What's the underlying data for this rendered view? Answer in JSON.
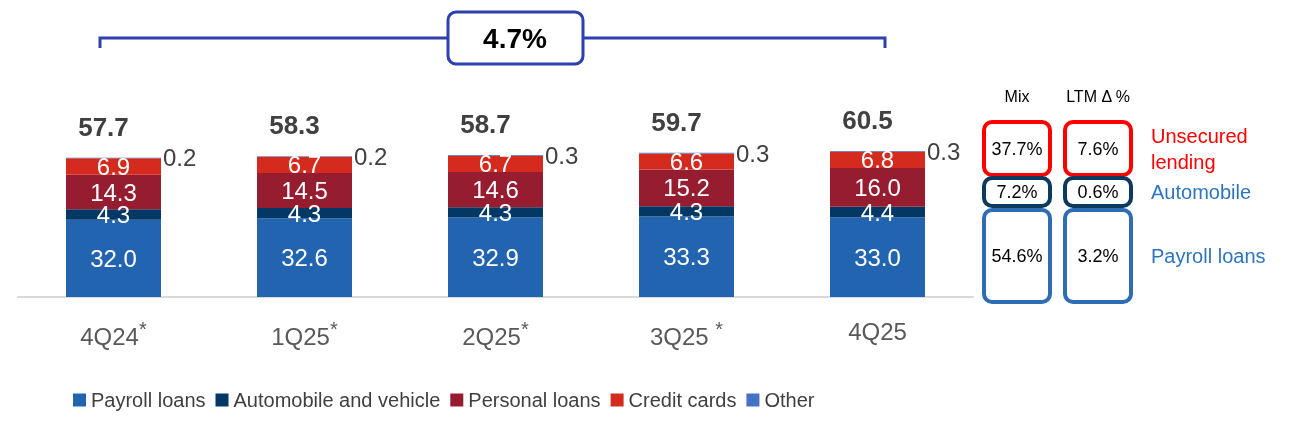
{
  "chart_data": {
    "type": "bar",
    "stacked": true,
    "legend": "bottom",
    "categories": [
      "4Q24$^{*}$",
      "1Q25$^{*}$",
      "2Q25$^{*}$",
      "3Q25 $^{*}$",
      "4Q25"
    ],
    "series": [
      {
        "name": "Payroll loans",
        "color": "#2264b0",
        "values": [
          32.0,
          32.6,
          32.9,
          33.3,
          33.0
        ],
        "value_labels": [
          "32.0",
          "32.6",
          "32.9",
          "33.3",
          "33.0"
        ]
      },
      {
        "name": "Automobile and vehicle",
        "color": "#023863",
        "values": [
          4.3,
          4.3,
          4.3,
          4.3,
          4.4
        ],
        "value_labels": [
          "4.3",
          "4.3",
          "4.3",
          "4.3",
          "4.4"
        ]
      },
      {
        "name": "Personal loans",
        "color": "#961c30",
        "values": [
          14.3,
          14.5,
          14.6,
          15.2,
          16.0
        ],
        "value_labels": [
          "14.3",
          "14.5",
          "14.6",
          "15.2",
          "16.0"
        ]
      },
      {
        "name": "Credit cards",
        "color": "#d52b1e",
        "values": [
          6.9,
          6.7,
          6.7,
          6.6,
          6.8
        ],
        "value_labels": [
          "6.9",
          "6.7",
          "6.7",
          "6.6",
          "6.8"
        ]
      },
      {
        "name": "Other",
        "color": "#4472c4",
        "values": [
          0.2,
          0.2,
          0.3,
          0.3,
          0.3
        ],
        "value_labels": [
          "0.2",
          "0.2",
          "0.3",
          "0.3",
          "0.3"
        ]
      }
    ],
    "totals": [
      "57.7",
      "58.3",
      "58.7",
      "59.7",
      "60.5"
    ],
    "annotations": [
      "4.7%",
      "Mix",
      "LTM Δ %",
      "Unsecured lending",
      "37.7%",
      "7.6%",
      "Automobile",
      "7.2%",
      "0.6%",
      "Payroll loans",
      "54.6%",
      "3.2%"
    ]
  }
}
